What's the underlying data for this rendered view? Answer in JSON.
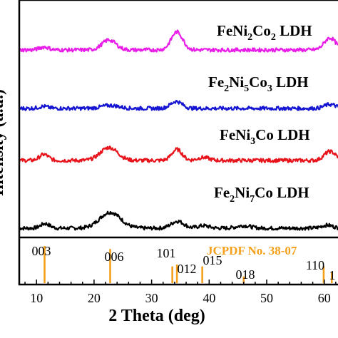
{
  "chart_data": {
    "type": "line",
    "xlabel": "2 Theta (deg)",
    "ylabel": "Intensity (a.u.)",
    "xlim": [
      7,
      64
    ],
    "x_ticks": [
      10,
      20,
      30,
      40,
      50,
      60
    ],
    "series": [
      {
        "name": "Fe2Ni7Co LDH",
        "label_main": [
          "Fe",
          "2",
          "Ni",
          "7",
          "Co LDH"
        ],
        "color": "#000000",
        "baseline": 0.0,
        "peaks": [
          [
            11.5,
            0.09,
            0.8
          ],
          [
            22.8,
            0.32,
            1.8
          ],
          [
            34.5,
            0.14,
            1.1
          ],
          [
            39.0,
            0.05,
            1.0
          ],
          [
            46.0,
            0.05,
            1.2
          ],
          [
            60.5,
            0.06,
            1.0
          ]
        ]
      },
      {
        "name": "FeNi3Co LDH",
        "label_main": [
          "FeNi",
          "3",
          "Co LDH"
        ],
        "color": "#e8141c",
        "baseline": 1.0,
        "peaks": [
          [
            11.3,
            0.12,
            0.8
          ],
          [
            22.6,
            0.26,
            1.5
          ],
          [
            34.4,
            0.22,
            0.9
          ],
          [
            39.0,
            0.06,
            1.0
          ],
          [
            61.0,
            0.18,
            1.0
          ]
        ]
      },
      {
        "name": "Fe2Ni5Co3 LDH",
        "label_main": [
          "Fe",
          "2",
          "Ni",
          "5",
          "Co",
          "3",
          " LDH"
        ],
        "color": "#1414d2",
        "baseline": 2.0,
        "peaks": [
          [
            11.2,
            0.04,
            0.8
          ],
          [
            22.8,
            0.06,
            1.5
          ],
          [
            34.3,
            0.14,
            1.0
          ],
          [
            61.0,
            0.08,
            1.0
          ]
        ]
      },
      {
        "name": "FeNi2Co2 LDH",
        "label_main": [
          "FeNi",
          "2",
          "Co",
          "2",
          " LDH"
        ],
        "color": "#e81ee8",
        "baseline": 3.0,
        "peaks": [
          [
            11.3,
            0.06,
            0.8
          ],
          [
            22.6,
            0.2,
            1.2
          ],
          [
            34.4,
            0.36,
            1.0
          ],
          [
            61.0,
            0.24,
            1.0
          ]
        ]
      }
    ],
    "reference": {
      "card": "JCPDF No. 38-07",
      "color": "#f5a01a",
      "lines": [
        {
          "x": 11.4,
          "h": 1.0,
          "hkl": "003"
        },
        {
          "x": 22.8,
          "h": 0.92,
          "hkl": "006"
        },
        {
          "x": 33.6,
          "h": 0.45,
          "hkl": "101"
        },
        {
          "x": 34.4,
          "h": 0.5,
          "hkl": "012"
        },
        {
          "x": 38.8,
          "h": 0.45,
          "hkl": "015"
        },
        {
          "x": 46.0,
          "h": 0.18,
          "hkl": "018"
        },
        {
          "x": 59.9,
          "h": 0.45,
          "hkl": "110"
        },
        {
          "x": 61.3,
          "h": 0.3,
          "hkl": "1"
        }
      ]
    }
  }
}
